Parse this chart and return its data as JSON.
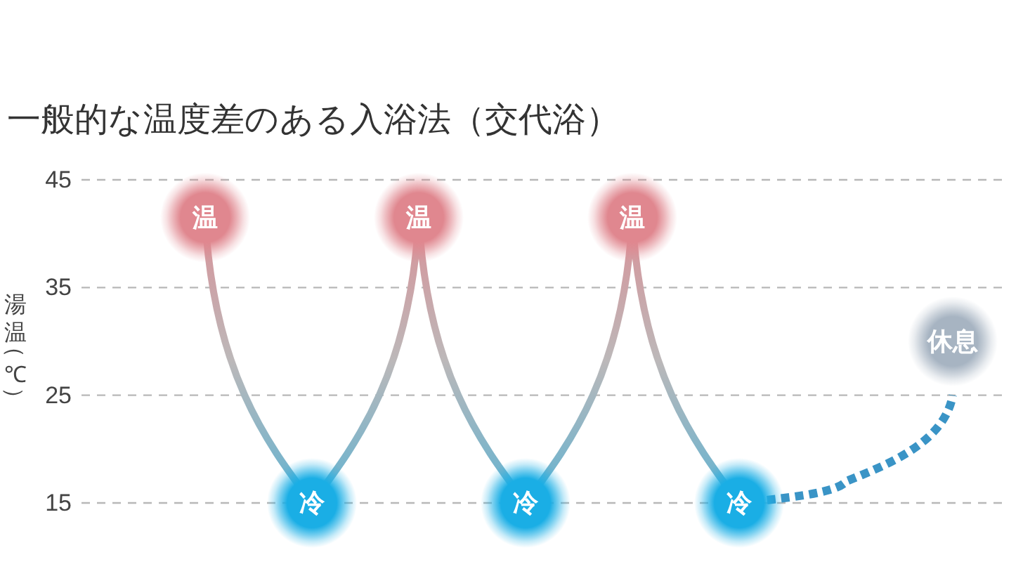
{
  "chart_data": {
    "type": "line",
    "title": "一般的な温度差のある入浴法（交代浴）",
    "ylabel": "湯温（℃）",
    "categories": [
      null,
      null,
      null,
      null,
      null,
      null,
      null,
      null
    ],
    "series": [
      {
        "color": "#bcb8b9",
        "colors": [
          "#e0878f",
          "#1aaee5",
          "#e0878f",
          "#1aaee5",
          "#e0878f",
          "#1aaee5",
          null,
          null
        ],
        "values": [
          41.5,
          15,
          41.5,
          15,
          41.5,
          15,
          null,
          null
        ],
        "value_labels": [
          "温",
          "冷",
          "温",
          "冷",
          "温",
          "冷",
          null,
          null
        ]
      },
      {
        "color": "#3a94c6",
        "marker": "none",
        "line_style": "dotted",
        "values": [
          null,
          null,
          null,
          null,
          null,
          15,
          17,
          25
        ]
      },
      {
        "type": "scatter",
        "color": "#a7b4c2",
        "values": [
          null,
          null,
          null,
          null,
          null,
          null,
          null,
          30
        ],
        "value_labels": [
          null,
          null,
          null,
          null,
          null,
          null,
          null,
          "休息"
        ]
      }
    ],
    "ylim": [
      15,
      45
    ],
    "yticks": [
      15,
      25,
      35,
      45
    ],
    "grid": "y",
    "tick_labels": "y",
    "marker": "circle",
    "line_style": "solid"
  }
}
